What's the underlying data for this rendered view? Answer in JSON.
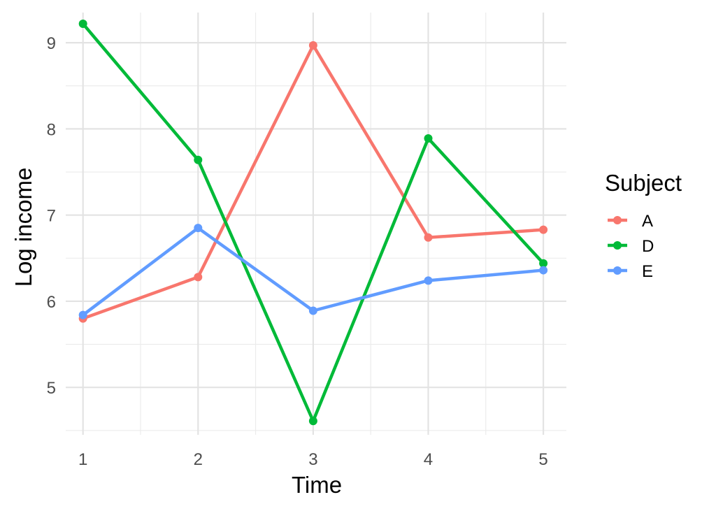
{
  "chart_data": {
    "type": "line",
    "title": "",
    "xlabel": "Time",
    "ylabel": "Log income",
    "x": [
      1,
      2,
      3,
      4,
      5
    ],
    "xlim": [
      0.85,
      5.2
    ],
    "ylim": [
      4.45,
      9.35
    ],
    "xticks": [
      "1",
      "2",
      "3",
      "4",
      "5"
    ],
    "yticks": [
      "5",
      "6",
      "7",
      "8",
      "9"
    ],
    "grid": true,
    "legend": {
      "title": "Subject",
      "position": "right"
    },
    "series": [
      {
        "name": "A",
        "color": "#F8766D",
        "values": [
          5.8,
          6.28,
          8.97,
          6.74,
          6.83
        ]
      },
      {
        "name": "D",
        "color": "#00BA38",
        "values": [
          9.22,
          7.64,
          4.61,
          7.89,
          6.44
        ]
      },
      {
        "name": "E",
        "color": "#619CFF",
        "values": [
          5.84,
          6.85,
          5.89,
          6.24,
          6.36
        ]
      }
    ]
  }
}
